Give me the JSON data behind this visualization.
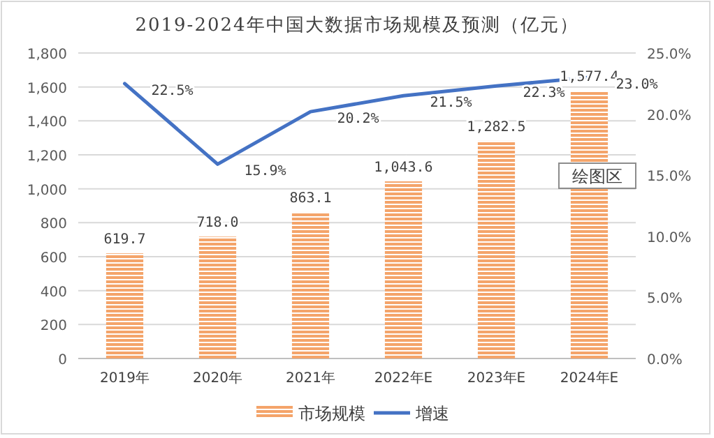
{
  "chart_data": {
    "type": "bar",
    "title": "2019-2024年中国大数据市场规模及预测（亿元）",
    "categories": [
      "2019年",
      "2020年",
      "2021年",
      "2022年E",
      "2023年E",
      "2024年E"
    ],
    "series": [
      {
        "name": "市场规模",
        "color": "#f4a46a",
        "values": [
          619.7,
          718.0,
          863.1,
          1043.6,
          1282.5,
          1577.4
        ],
        "value_labels": [
          "619.7",
          "718.0",
          "863.1",
          "1,043.6",
          "1,282.5",
          "1,577.4"
        ]
      },
      {
        "name": "增速",
        "type": "line",
        "axis": "y2",
        "color": "#4472c4",
        "values": [
          22.5,
          15.9,
          20.2,
          21.5,
          22.3,
          23.0
        ],
        "value_labels": [
          "22.5%",
          "15.9%",
          "20.2%",
          "21.5%",
          "22.3%",
          "23.0%"
        ]
      }
    ],
    "ylim": [
      0,
      1800
    ],
    "yticks": [
      0,
      {
        "value": 200,
        "label": "200"
      },
      {
        "value": 400,
        "label": "400"
      },
      {
        "value": 600,
        "label": "600"
      },
      {
        "value": 800,
        "label": "800"
      },
      {
        "value": 1000,
        "label": "1,000"
      },
      {
        "value": 1200,
        "label": "1,200"
      },
      {
        "value": 1400,
        "label": "1,400"
      },
      {
        "value": 1600,
        "label": "1,600"
      },
      {
        "value": 1800,
        "label": "1,800"
      }
    ],
    "y2lim": [
      0,
      25
    ],
    "y2ticks": [
      {
        "value": 0,
        "label": "0.0%"
      },
      {
        "value": 5,
        "label": "5.0%"
      },
      {
        "value": 10,
        "label": "10.0%"
      },
      {
        "value": 15,
        "label": "15.0%"
      },
      {
        "value": 20,
        "label": "20.0%"
      },
      {
        "value": 25,
        "label": "25.0%"
      }
    ],
    "grid": "y",
    "legend": "bottom",
    "marker": "none",
    "line_style": "solid",
    "annotations": [
      "绘图区"
    ]
  }
}
